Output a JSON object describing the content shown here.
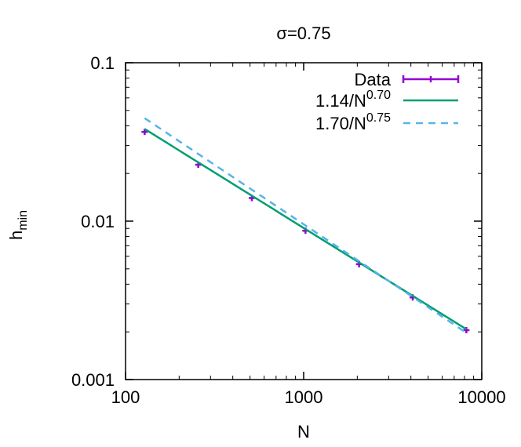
{
  "chart_data": {
    "type": "line",
    "title": "σ=0.75",
    "xlabel": "N",
    "ylabel": "h",
    "ylabel_sub": "min",
    "x_scale": "log",
    "y_scale": "log",
    "xlim": [
      100,
      10000
    ],
    "ylim": [
      0.001,
      0.1
    ],
    "x_ticks": [
      "100",
      "1000",
      "10000"
    ],
    "y_ticks": [
      "0.001",
      "0.01",
      "0.1"
    ],
    "grid": false,
    "legend_position": "top-right",
    "series": [
      {
        "name": "Data",
        "style": "points-errorbars",
        "color": "#9400d3",
        "x": [
          128,
          256,
          512,
          1024,
          2048,
          4096,
          8192
        ],
        "y": [
          0.0366,
          0.0227,
          0.014,
          0.0087,
          0.00535,
          0.0033,
          0.00205
        ]
      },
      {
        "name": "1.14/N",
        "name_sup": "0.70",
        "style": "solid",
        "color": "#009e73",
        "coef": 1.14,
        "exponent": 0.7,
        "x_range": [
          128,
          8192
        ]
      },
      {
        "name": "1.70/N",
        "name_sup": "0.75",
        "style": "dashed",
        "color": "#56b4e9",
        "coef": 1.7,
        "exponent": 0.75,
        "x_range": [
          128,
          8192
        ]
      }
    ]
  }
}
